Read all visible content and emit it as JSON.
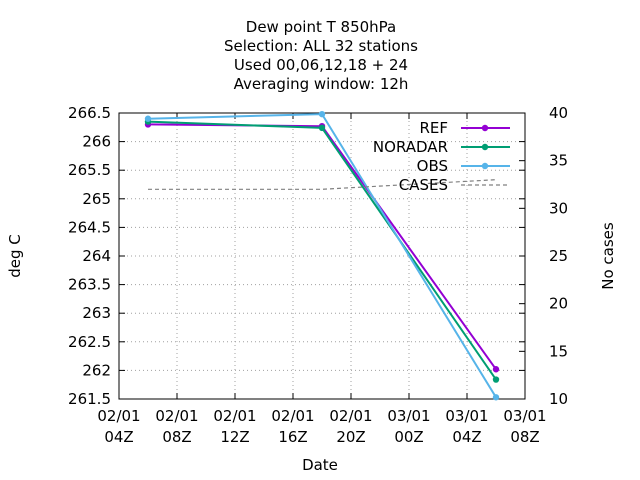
{
  "chart_data": {
    "type": "line",
    "title_lines": [
      "Dew point T 850hPa",
      "Selection: ALL      32 stations",
      "Used  00,06,12,18 + 24",
      "Averaging window: 12h"
    ],
    "xlabel": "Date",
    "ylabel": "deg C",
    "y2label": "No cases",
    "x_ticks": [
      {
        "h": 4,
        "line1": "02/01",
        "line2": "04Z"
      },
      {
        "h": 8,
        "line1": "02/01",
        "line2": "08Z"
      },
      {
        "h": 12,
        "line1": "02/01",
        "line2": "12Z"
      },
      {
        "h": 16,
        "line1": "02/01",
        "line2": "16Z"
      },
      {
        "h": 20,
        "line1": "02/01",
        "line2": "20Z"
      },
      {
        "h": 24,
        "line1": "03/01",
        "line2": "00Z"
      },
      {
        "h": 28,
        "line1": "03/01",
        "line2": "04Z"
      },
      {
        "h": 32,
        "line1": "03/01",
        "line2": "08Z"
      }
    ],
    "x_unit_note": "hours since 02/01 00Z",
    "xlim": [
      4,
      32
    ],
    "ylim": [
      261.5,
      266.5
    ],
    "y_ticks": [
      261.5,
      262,
      262.5,
      263,
      263.5,
      264,
      264.5,
      265,
      265.5,
      266,
      266.5
    ],
    "y_tick_labels": [
      "261.5",
      "262",
      "262.5",
      "263",
      "263.5",
      "264",
      "264.5",
      "265",
      "265.5",
      "266",
      "266.5"
    ],
    "y2lim": [
      10,
      40
    ],
    "y2_ticks": [
      10,
      15,
      20,
      25,
      30,
      35,
      40
    ],
    "y2_tick_labels": [
      "10",
      "15",
      "20",
      "25",
      "30",
      "35",
      "40"
    ],
    "grid": true,
    "legend_position": "top-right",
    "series": [
      {
        "name": "REF",
        "color": "#9400d3",
        "axis": "y",
        "style": "solid-points",
        "x": [
          6,
          18,
          30
        ],
        "values": [
          266.3,
          266.27,
          262.02
        ]
      },
      {
        "name": "NORADAR",
        "color": "#009e73",
        "axis": "y",
        "style": "solid-points",
        "x": [
          6,
          18,
          30
        ],
        "values": [
          266.35,
          266.24,
          261.84
        ]
      },
      {
        "name": "OBS",
        "color": "#56b4e9",
        "axis": "y",
        "style": "solid-points",
        "x": [
          6,
          18,
          30
        ],
        "values": [
          266.4,
          266.48,
          261.53
        ]
      },
      {
        "name": "CASES",
        "color": "#808080",
        "axis": "y2",
        "style": "dashed",
        "x": [
          6,
          18,
          30
        ],
        "values": [
          32,
          32,
          33
        ]
      }
    ]
  }
}
